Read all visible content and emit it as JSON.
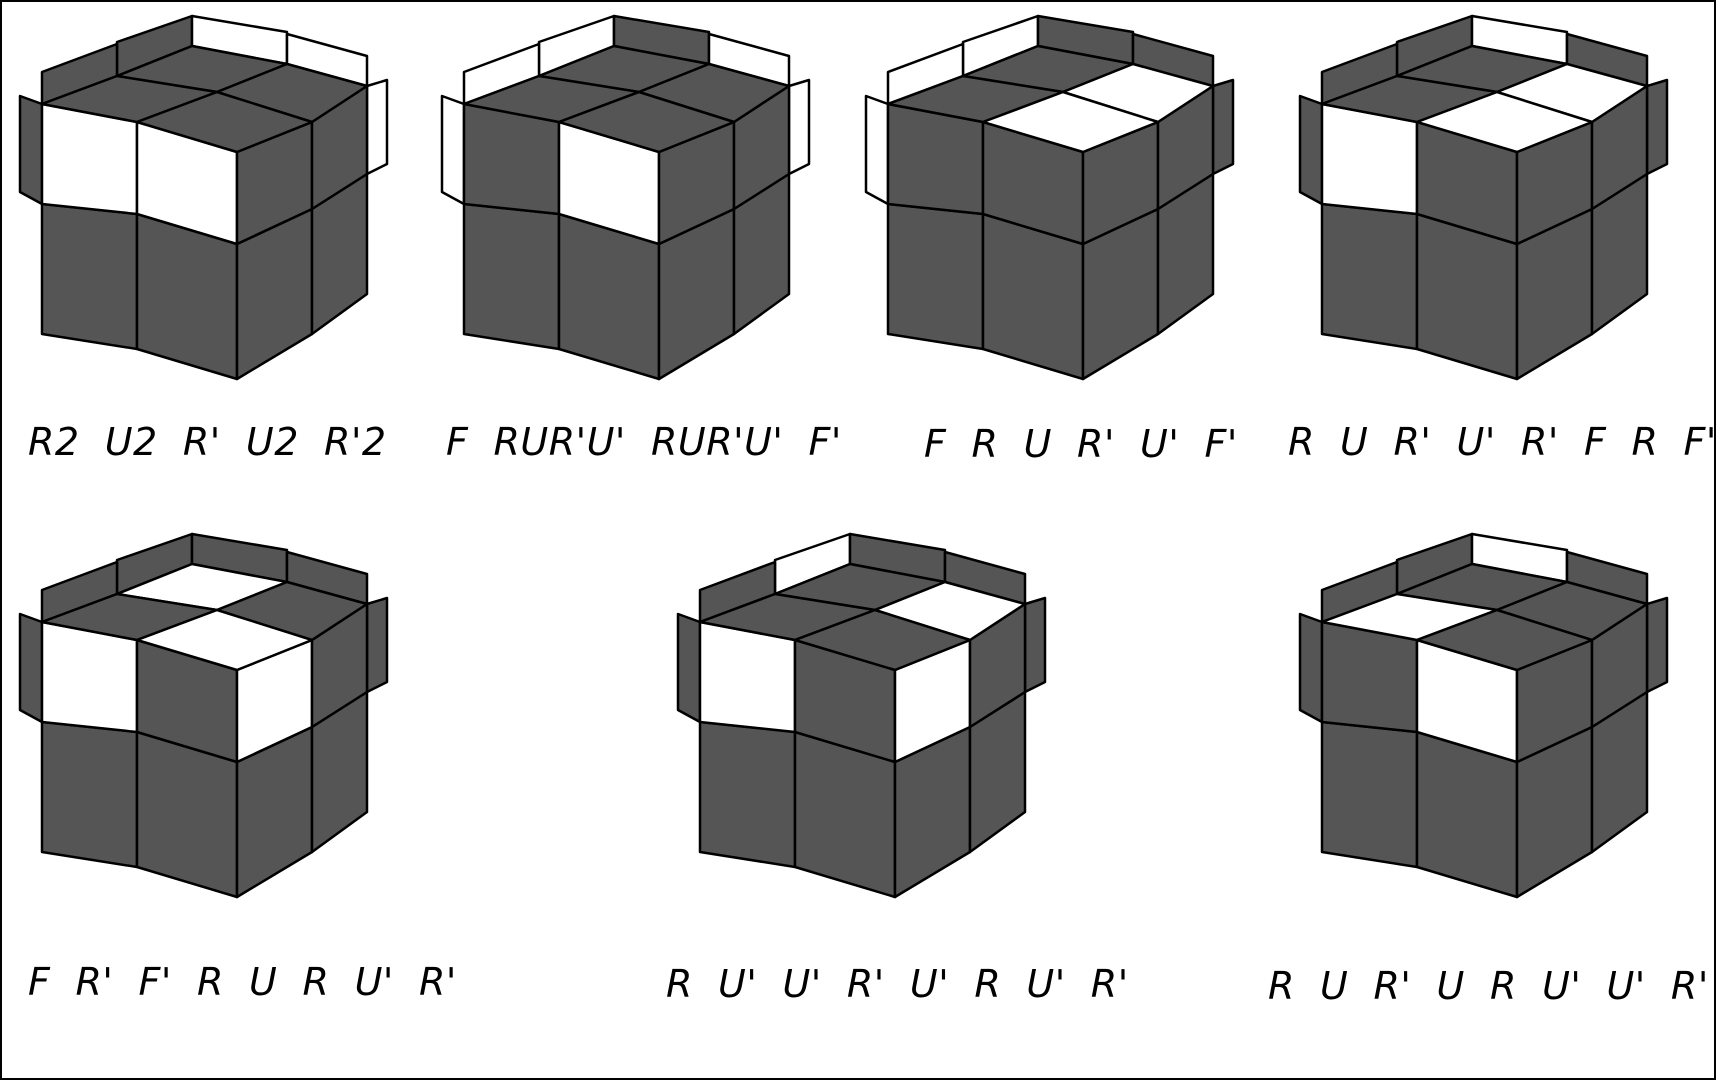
{
  "colors": {
    "dark_sticker": "#555555",
    "light_sticker": "#ffffff",
    "edge": "#000000",
    "background": "#ffffff"
  },
  "cases": [
    {
      "algorithm": "R2  U2  R'  U2  R'2",
      "top": [
        "dark",
        "dark",
        "dark",
        "dark"
      ],
      "front": [
        "light",
        "light"
      ],
      "right": [
        "dark",
        "dark"
      ],
      "side_bars": {
        "back_left": "dark",
        "back_right": "light",
        "left_back": "dark",
        "left_front": "dark",
        "right_back": "light",
        "right_front": "light"
      }
    },
    {
      "algorithm": "F  RUR'U'  RUR'U'  F'",
      "top": [
        "dark",
        "dark",
        "dark",
        "dark"
      ],
      "front": [
        "dark",
        "light"
      ],
      "right": [
        "dark",
        "dark"
      ],
      "side_bars": {
        "back_left": "light",
        "back_right": "dark",
        "left_back": "light",
        "left_front": "light",
        "right_back": "light",
        "right_front": "light"
      }
    },
    {
      "algorithm": "F  R  U  R'  U'  F'",
      "top": [
        "dark",
        "light",
        "dark",
        "light"
      ],
      "front": [
        "dark",
        "dark"
      ],
      "right": [
        "dark",
        "dark"
      ],
      "side_bars": {
        "back_left": "light",
        "back_right": "dark",
        "left_back": "light",
        "left_front": "light",
        "right_back": "dark",
        "right_front": "dark"
      }
    },
    {
      "algorithm": "R  U  R'  U'  R'  F  R  F'",
      "top": [
        "dark",
        "light",
        "dark",
        "light"
      ],
      "front": [
        "light",
        "dark"
      ],
      "right": [
        "dark",
        "dark"
      ],
      "side_bars": {
        "back_left": "dark",
        "back_right": "light",
        "left_back": "dark",
        "left_front": "dark",
        "right_back": "dark",
        "right_front": "dark"
      }
    },
    {
      "algorithm": "F  R'  F'  R  U  R  U'  R'",
      "top": [
        "light",
        "dark",
        "dark",
        "light"
      ],
      "front": [
        "light",
        "dark"
      ],
      "right": [
        "light",
        "dark"
      ],
      "side_bars": {
        "back_left": "dark",
        "back_right": "dark",
        "left_back": "dark",
        "left_front": "dark",
        "right_back": "dark",
        "right_front": "dark"
      }
    },
    {
      "algorithm": "R  U'  U'  R'  U'  R  U'  R'",
      "top": [
        "dark",
        "light",
        "dark",
        "dark"
      ],
      "front": [
        "light",
        "dark"
      ],
      "right": [
        "light",
        "dark"
      ],
      "side_bars": {
        "back_left": "light",
        "back_right": "dark",
        "left_back": "dark",
        "left_front": "dark",
        "right_back": "dark",
        "right_front": "dark"
      }
    },
    {
      "algorithm": "R  U  R'  U  R  U'  U'  R'",
      "top": [
        "dark",
        "dark",
        "light",
        "dark"
      ],
      "front": [
        "dark",
        "light"
      ],
      "right": [
        "dark",
        "dark"
      ],
      "side_bars": {
        "back_left": "dark",
        "back_right": "light",
        "left_back": "dark",
        "left_front": "dark",
        "right_back": "dark",
        "right_front": "dark"
      }
    }
  ]
}
